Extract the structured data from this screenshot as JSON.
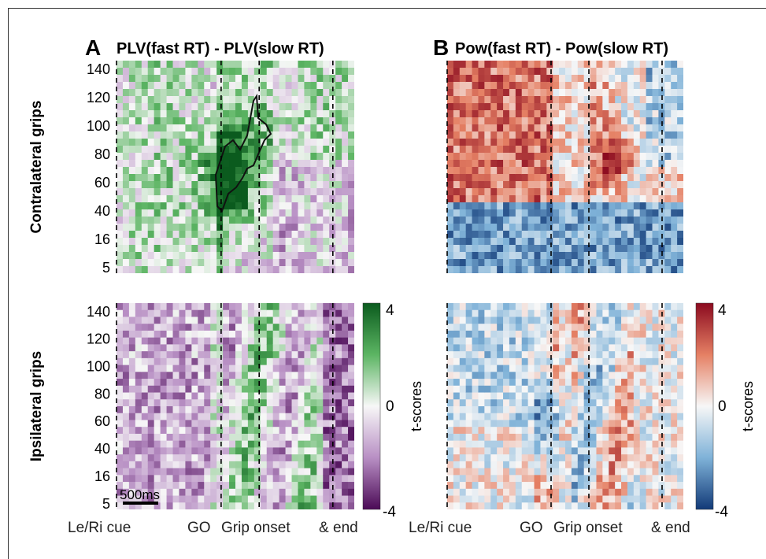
{
  "panels": [
    {
      "letter": "A",
      "title": "PLV(fast RT) - PLV(slow RT)",
      "colormap": "green-purple"
    },
    {
      "letter": "B",
      "title": "Pow(fast RT) - Pow(slow RT)",
      "colormap": "red-blue"
    }
  ],
  "rows": [
    {
      "label": "Contralateral grips"
    },
    {
      "label": "Ipsilateral grips"
    }
  ],
  "chart_data": {
    "type": "heatmap",
    "yticks": [
      "5",
      "16",
      "40",
      "60",
      "80",
      "100",
      "120",
      "140"
    ],
    "event_labels": [
      "Le/Ri cue",
      "GO",
      "Grip onset",
      "&",
      "end"
    ],
    "event_fractions": [
      0.0,
      0.44,
      0.6,
      0.91
    ],
    "colorbar": {
      "label": "t-scores",
      "ticks": [
        "4",
        "0",
        "-4"
      ],
      "min": -4,
      "max": 4
    },
    "scale_bar_label": "500ms",
    "significant_cluster": {
      "panel": "A",
      "row": "Contralateral grips",
      "y_range": [
        40,
        130
      ]
    }
  },
  "colors": {
    "green_max": "#0b5b1e",
    "purple_min": "#4b0a56",
    "red_max": "#8b0a1f",
    "blue_min": "#123a78",
    "mid": "#f7f7f7"
  }
}
